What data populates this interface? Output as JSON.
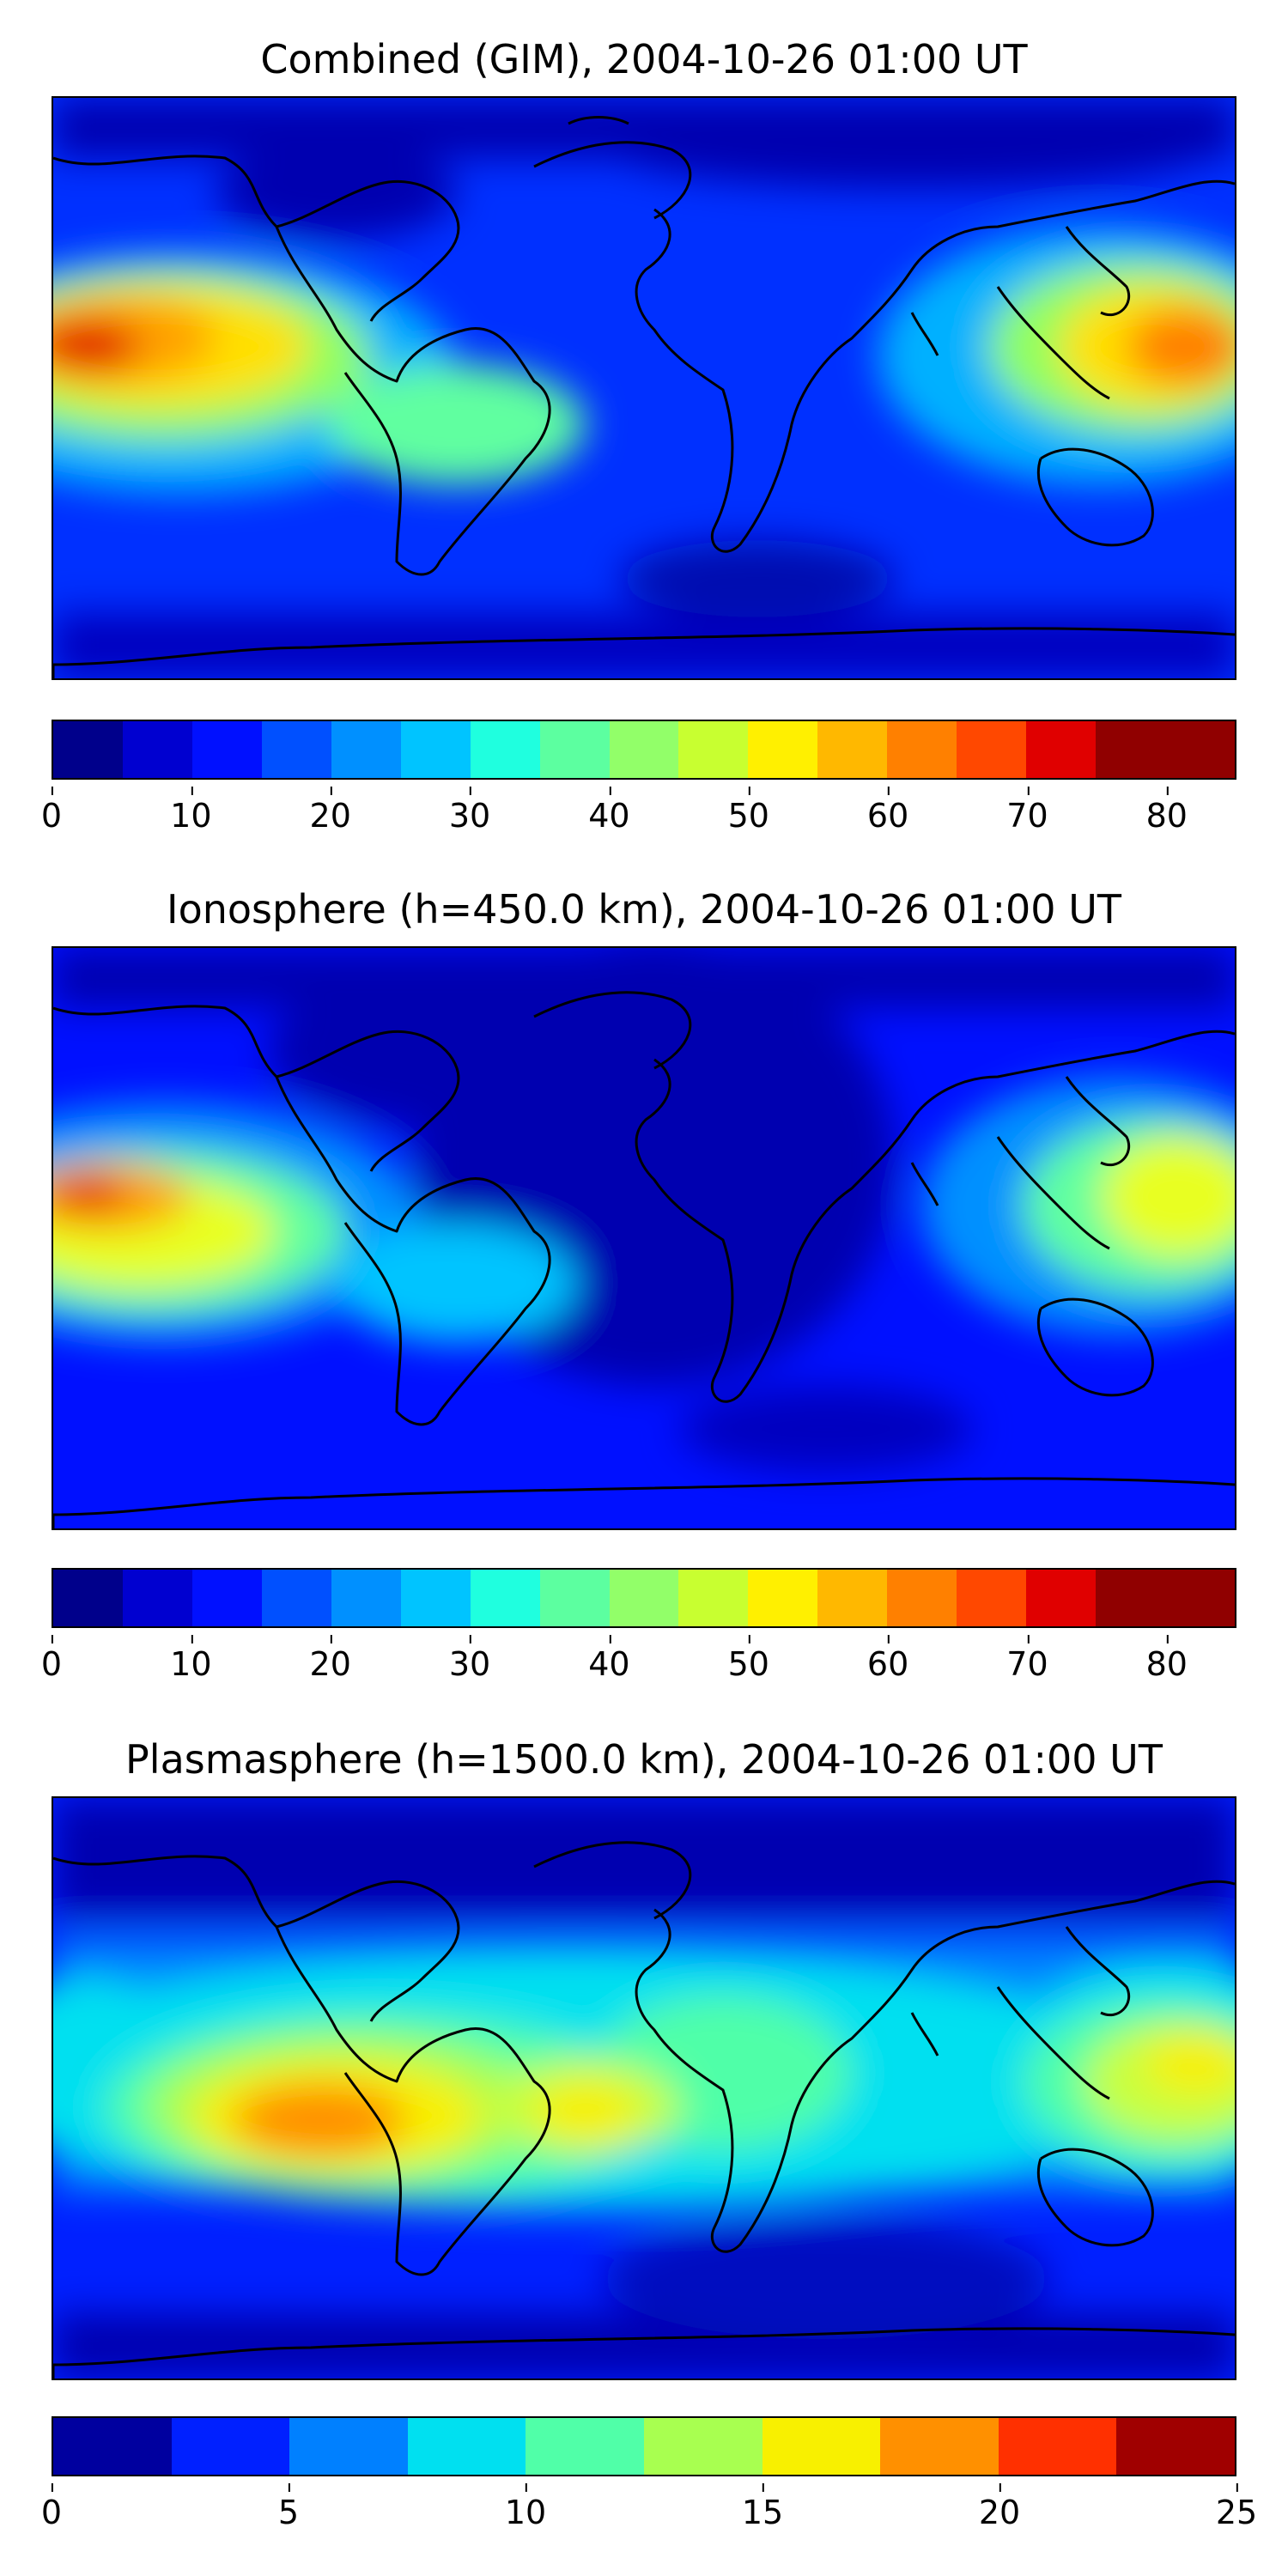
{
  "panels": [
    {
      "title": "Combined (GIM), 2004-10-26 01:00 UT",
      "colorbar": {
        "colors": [
          "#00008b",
          "#0000d0",
          "#0010ff",
          "#0050ff",
          "#0090ff",
          "#00c4ff",
          "#1fffdf",
          "#5cffa0",
          "#92ff69",
          "#c8ff30",
          "#fff000",
          "#ffb800",
          "#ff8000",
          "#ff4800",
          "#e00000",
          "#900000"
        ],
        "ticks": [
          "0",
          "10",
          "20",
          "30",
          "40",
          "50",
          "60",
          "70",
          "80"
        ]
      }
    },
    {
      "title": "Ionosphere  (h=450.0 km), 2004-10-26 01:00 UT",
      "colorbar": {
        "colors": [
          "#00008b",
          "#0000d0",
          "#0010ff",
          "#0050ff",
          "#0090ff",
          "#00c4ff",
          "#1fffdf",
          "#5cffa0",
          "#92ff69",
          "#c8ff30",
          "#fff000",
          "#ffb800",
          "#ff8000",
          "#ff4800",
          "#e00000",
          "#900000"
        ],
        "ticks": [
          "0",
          "10",
          "20",
          "30",
          "40",
          "50",
          "60",
          "70",
          "80"
        ]
      }
    },
    {
      "title": "Plasmasphere (h=1500.0 km), 2004-10-26 01:00 UT",
      "colorbar": {
        "colors": [
          "#00009f",
          "#0020ff",
          "#0080ff",
          "#00e0f0",
          "#50ffa8",
          "#a8ff50",
          "#f8f000",
          "#ff9000",
          "#ff3000",
          "#a00000"
        ],
        "ticks": [
          "0",
          "5",
          "10",
          "15",
          "20",
          "25"
        ]
      }
    }
  ]
}
